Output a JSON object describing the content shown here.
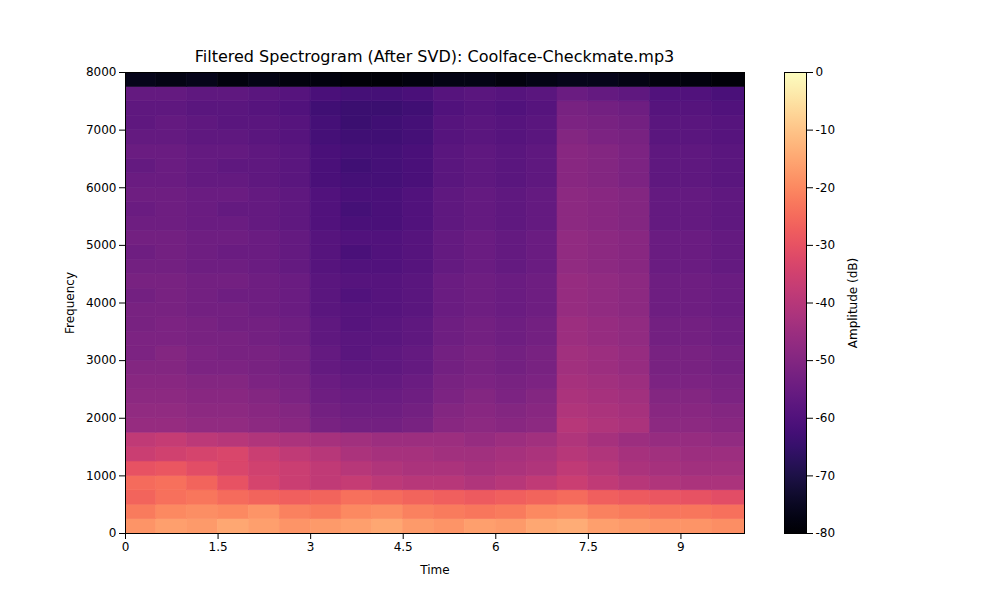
{
  "chart_data": {
    "type": "heatmap",
    "title": "Filtered Spectrogram (After SVD): Coolface-Checkmate.mp3",
    "x_label": "Time",
    "y_label": "Frequency",
    "xlim": [
      0,
      10.03
    ],
    "ylim": [
      0,
      8000
    ],
    "xticks": [
      0,
      1.5,
      3,
      4.5,
      6,
      7.5,
      9
    ],
    "yticks": [
      0,
      1000,
      2000,
      3000,
      4000,
      5000,
      6000,
      7000,
      8000
    ],
    "color": "magma",
    "time_edges": [
      0,
      0.5,
      1,
      1.5,
      2,
      2.5,
      3,
      3.5,
      4,
      4.5,
      5,
      5.5,
      6,
      6.5,
      7,
      7.5,
      8,
      8.5,
      9,
      9.5,
      10.03
    ],
    "frequency_edges": [
      0,
      250,
      500,
      750,
      1000,
      1250,
      1500,
      1750,
      2000,
      2250,
      2500,
      2750,
      3000,
      3250,
      3500,
      3750,
      4000,
      4250,
      4500,
      4750,
      5000,
      5250,
      5500,
      5750,
      6000,
      6250,
      6500,
      6750,
      7000,
      7250,
      7500,
      7750,
      8000
    ],
    "cells": [
      [
        -18,
        -16,
        -17,
        -15,
        -16,
        -18,
        -17,
        -16,
        -15,
        -17,
        -18,
        -16,
        -17,
        -15,
        -14,
        -16,
        -17,
        -18,
        -18,
        -19
      ],
      [
        -22,
        -20,
        -19,
        -20,
        -18,
        -21,
        -22,
        -20,
        -19,
        -21,
        -22,
        -23,
        -22,
        -20,
        -19,
        -21,
        -22,
        -23,
        -23,
        -24
      ],
      [
        -26,
        -24,
        -23,
        -25,
        -26,
        -27,
        -26,
        -24,
        -25,
        -26,
        -27,
        -28,
        -27,
        -26,
        -25,
        -27,
        -28,
        -29,
        -30,
        -31
      ],
      [
        -25,
        -24,
        -26,
        -30,
        -34,
        -36,
        -38,
        -37,
        -39,
        -40,
        -40,
        -41,
        -40,
        -38,
        -36,
        -38,
        -40,
        -41,
        -42,
        -42
      ],
      [
        -30,
        -29,
        -31,
        -33,
        -35,
        -36,
        -38,
        -40,
        -41,
        -42,
        -42,
        -43,
        -42,
        -41,
        -38,
        -40,
        -42,
        -43,
        -44,
        -44
      ],
      [
        -36,
        -35,
        -34,
        -33,
        -36,
        -38,
        -40,
        -42,
        -43,
        -43,
        -44,
        -44,
        -43,
        -42,
        -40,
        -41,
        -43,
        -44,
        -45,
        -45
      ],
      [
        -38,
        -37,
        -39,
        -40,
        -41,
        -42,
        -43,
        -44,
        -45,
        -45,
        -45,
        -46,
        -45,
        -44,
        -41,
        -43,
        -45,
        -46,
        -46,
        -47
      ],
      [
        -46,
        -46,
        -47,
        -47,
        -48,
        -49,
        -52,
        -53,
        -53,
        -52,
        -49,
        -48,
        -49,
        -48,
        -40,
        -41,
        -42,
        -48,
        -48,
        -49
      ],
      [
        -47,
        -47,
        -48,
        -48,
        -49,
        -50,
        -53,
        -54,
        -54,
        -53,
        -50,
        -49,
        -50,
        -49,
        -41,
        -42,
        -43,
        -49,
        -49,
        -50
      ],
      [
        -48,
        -48,
        -49,
        -49,
        -50,
        -51,
        -54,
        -55,
        -55,
        -54,
        -51,
        -50,
        -51,
        -50,
        -42,
        -43,
        -44,
        -50,
        -50,
        -51
      ],
      [
        -49,
        -49,
        -50,
        -50,
        -51,
        -52,
        -55,
        -56,
        -56,
        -55,
        -52,
        -51,
        -52,
        -51,
        -43,
        -44,
        -45,
        -51,
        -51,
        -52
      ],
      [
        -50,
        -50,
        -51,
        -51,
        -52,
        -53,
        -56,
        -57,
        -57,
        -56,
        -53,
        -52,
        -53,
        -52,
        -44,
        -45,
        -46,
        -52,
        -52,
        -53
      ],
      [
        -51,
        -50,
        -51,
        -52,
        -52,
        -53,
        -56,
        -58,
        -57,
        -56,
        -53,
        -52,
        -53,
        -52,
        -44,
        -45,
        -46,
        -52,
        -52,
        -53
      ],
      [
        -51,
        -51,
        -52,
        -52,
        -53,
        -54,
        -57,
        -58,
        -58,
        -57,
        -54,
        -53,
        -54,
        -53,
        -45,
        -46,
        -47,
        -53,
        -53,
        -54
      ],
      [
        -52,
        -51,
        -52,
        -53,
        -53,
        -54,
        -57,
        -59,
        -58,
        -57,
        -54,
        -53,
        -54,
        -53,
        -45,
        -46,
        -47,
        -53,
        -53,
        -54
      ],
      [
        -52,
        -52,
        -53,
        -53,
        -54,
        -55,
        -58,
        -59,
        -59,
        -58,
        -55,
        -54,
        -55,
        -54,
        -46,
        -47,
        -48,
        -54,
        -54,
        -55
      ],
      [
        -53,
        -52,
        -53,
        -54,
        -54,
        -55,
        -58,
        -60,
        -59,
        -58,
        -55,
        -54,
        -55,
        -54,
        -46,
        -47,
        -48,
        -54,
        -54,
        -55
      ],
      [
        -52,
        -52,
        -53,
        -53,
        -54,
        -55,
        -58,
        -59,
        -59,
        -58,
        -55,
        -54,
        -55,
        -54,
        -46,
        -47,
        -48,
        -54,
        -54,
        -55
      ],
      [
        -53,
        -53,
        -54,
        -54,
        -55,
        -56,
        -59,
        -60,
        -60,
        -59,
        -56,
        -55,
        -56,
        -55,
        -47,
        -48,
        -49,
        -55,
        -55,
        -56
      ],
      [
        -54,
        -53,
        -54,
        -55,
        -55,
        -56,
        -59,
        -61,
        -60,
        -59,
        -56,
        -55,
        -56,
        -55,
        -47,
        -48,
        -49,
        -55,
        -55,
        -56
      ],
      [
        -53,
        -53,
        -54,
        -54,
        -55,
        -56,
        -59,
        -60,
        -60,
        -59,
        -56,
        -55,
        -56,
        -55,
        -47,
        -48,
        -49,
        -55,
        -55,
        -56
      ],
      [
        -54,
        -54,
        -55,
        -55,
        -56,
        -57,
        -60,
        -61,
        -61,
        -60,
        -57,
        -56,
        -57,
        -56,
        -48,
        -49,
        -50,
        -56,
        -56,
        -57
      ],
      [
        -55,
        -54,
        -55,
        -56,
        -56,
        -57,
        -60,
        -62,
        -61,
        -60,
        -57,
        -56,
        -57,
        -56,
        -48,
        -49,
        -50,
        -56,
        -56,
        -57
      ],
      [
        -54,
        -54,
        -55,
        -55,
        -56,
        -57,
        -60,
        -61,
        -61,
        -60,
        -57,
        -56,
        -57,
        -56,
        -48,
        -49,
        -50,
        -56,
        -56,
        -57
      ],
      [
        -55,
        -55,
        -56,
        -56,
        -57,
        -58,
        -61,
        -62,
        -62,
        -61,
        -58,
        -57,
        -58,
        -57,
        -49,
        -50,
        -51,
        -57,
        -57,
        -58
      ],
      [
        -56,
        -55,
        -56,
        -57,
        -57,
        -58,
        -61,
        -63,
        -62,
        -61,
        -58,
        -57,
        -58,
        -57,
        -49,
        -50,
        -51,
        -57,
        -57,
        -58
      ],
      [
        -55,
        -55,
        -56,
        -56,
        -57,
        -58,
        -61,
        -62,
        -62,
        -61,
        -58,
        -57,
        -58,
        -57,
        -49,
        -50,
        -51,
        -57,
        -57,
        -58
      ],
      [
        -56,
        -56,
        -57,
        -57,
        -58,
        -59,
        -62,
        -63,
        -63,
        -62,
        -59,
        -58,
        -59,
        -58,
        -50,
        -51,
        -52,
        -58,
        -58,
        -59
      ],
      [
        -57,
        -56,
        -57,
        -58,
        -58,
        -59,
        -62,
        -64,
        -63,
        -62,
        -59,
        -58,
        -59,
        -58,
        -51,
        -52,
        -53,
        -58,
        -58,
        -59
      ],
      [
        -57,
        -57,
        -58,
        -58,
        -59,
        -60,
        -63,
        -64,
        -64,
        -63,
        -60,
        -59,
        -60,
        -59,
        -52,
        -53,
        -54,
        -59,
        -59,
        -60
      ],
      [
        -56,
        -56,
        -57,
        -57,
        -58,
        -59,
        -61,
        -62,
        -62,
        -61,
        -59,
        -58,
        -59,
        -58,
        -55,
        -56,
        -57,
        -60,
        -60,
        -61
      ],
      [
        -76,
        -77,
        -76,
        -78,
        -77,
        -78,
        -78,
        -79,
        -79,
        -78,
        -77,
        -77,
        -78,
        -77,
        -76,
        -76,
        -77,
        -78,
        -78,
        -79
      ]
    ],
    "colorbar": {
      "label": "Amplitude (dB)",
      "range": [
        -80,
        0
      ],
      "ticks": [
        0,
        -10,
        -20,
        -30,
        -40,
        -50,
        -60,
        -70,
        -80
      ]
    }
  }
}
